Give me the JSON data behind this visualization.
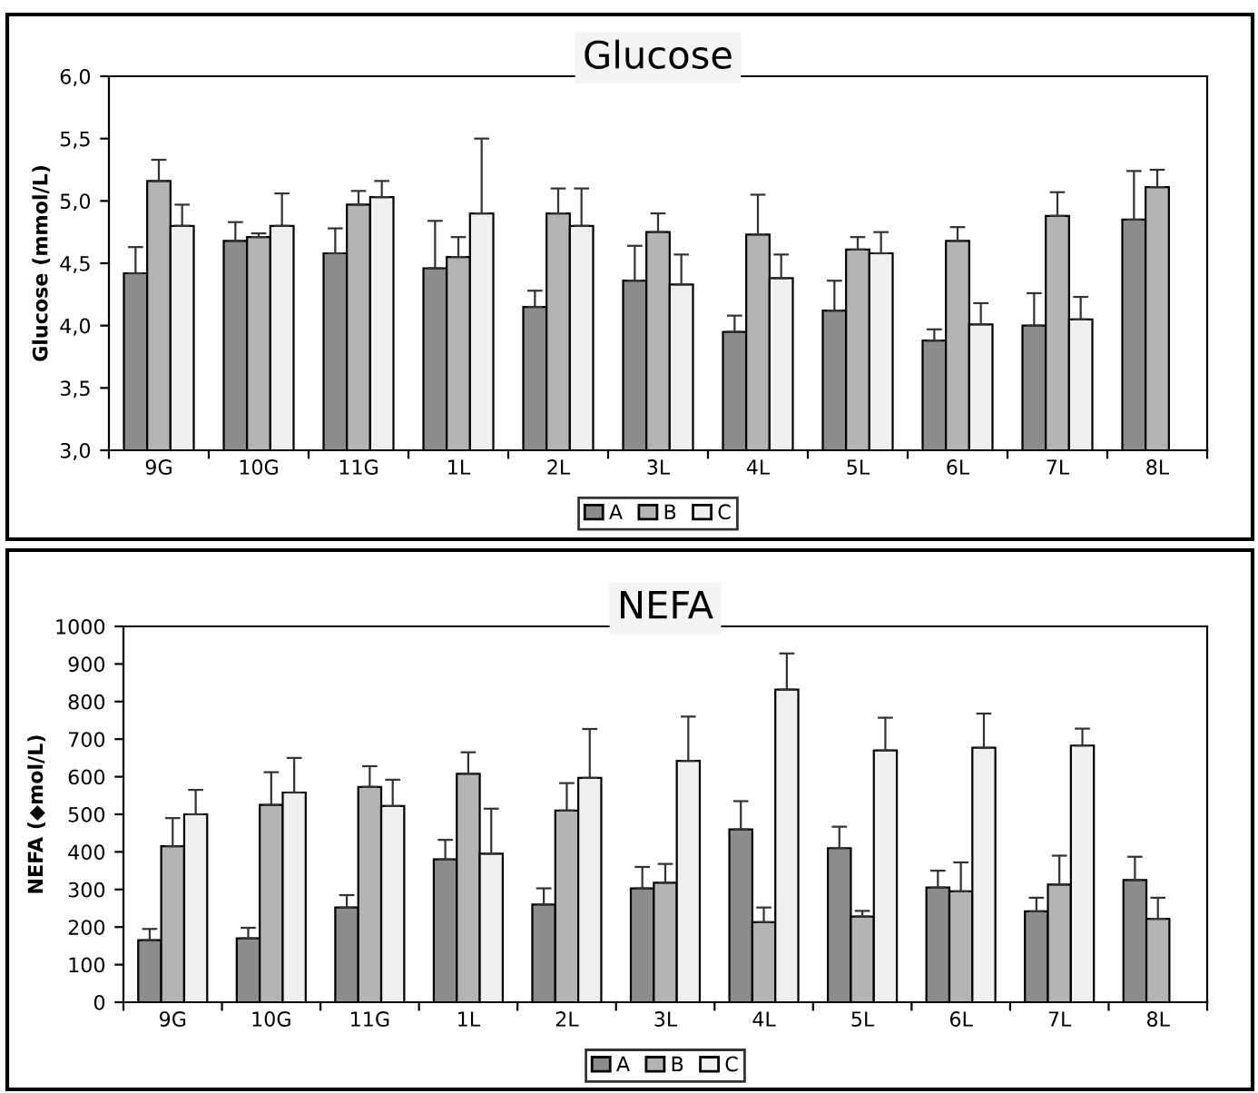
{
  "chart_data": [
    {
      "type": "bar",
      "title": "Glucose",
      "ylabel": "Glucose (mmol/L)",
      "categories": [
        "9G",
        "10G",
        "11G",
        "1L",
        "2L",
        "3L",
        "4L",
        "5L",
        "6L",
        "7L",
        "8L"
      ],
      "ylim": [
        3.0,
        6.0
      ],
      "yticks": [
        {
          "value": 3.0,
          "label": "3,0"
        },
        {
          "value": 3.5,
          "label": "3,5"
        },
        {
          "value": 4.0,
          "label": "4,0"
        },
        {
          "value": 4.5,
          "label": "4,5"
        },
        {
          "value": 5.0,
          "label": "5,0"
        },
        {
          "value": 5.5,
          "label": "5,5"
        },
        {
          "value": 6.0,
          "label": "6,0"
        }
      ],
      "grid": false,
      "legend": "bottom",
      "series": [
        {
          "name": "A",
          "color": "#8c8c8c",
          "values": [
            4.42,
            4.68,
            4.58,
            4.46,
            4.15,
            4.36,
            3.95,
            4.12,
            3.88,
            4.0,
            4.85
          ],
          "errors": [
            [
              4.42,
              4.63
            ],
            [
              4.68,
              4.83
            ],
            [
              4.58,
              4.78
            ],
            [
              4.46,
              4.84
            ],
            [
              4.15,
              4.28
            ],
            [
              4.36,
              4.64
            ],
            [
              3.95,
              4.08
            ],
            [
              4.12,
              4.36
            ],
            [
              3.88,
              3.97
            ],
            [
              4.0,
              4.26
            ],
            [
              4.85,
              5.24
            ]
          ]
        },
        {
          "name": "B",
          "color": "#b4b4b4",
          "values": [
            5.16,
            4.71,
            4.97,
            4.55,
            4.9,
            4.75,
            4.73,
            4.61,
            4.68,
            4.88,
            5.11
          ],
          "errors": [
            [
              5.16,
              5.33
            ],
            [
              4.71,
              4.74
            ],
            [
              4.97,
              5.08
            ],
            [
              4.55,
              4.71
            ],
            [
              4.9,
              5.1
            ],
            [
              4.75,
              4.9
            ],
            [
              4.73,
              5.05
            ],
            [
              4.61,
              4.71
            ],
            [
              4.68,
              4.79
            ],
            [
              4.88,
              5.07
            ],
            [
              5.11,
              5.25
            ]
          ]
        },
        {
          "name": "C",
          "color": "#f0f0f0",
          "values": [
            4.8,
            4.8,
            5.03,
            4.9,
            4.8,
            4.33,
            4.38,
            4.58,
            4.01,
            4.05,
            null
          ],
          "errors": [
            [
              4.8,
              4.97
            ],
            [
              4.8,
              5.06
            ],
            [
              5.03,
              5.16
            ],
            [
              4.9,
              5.5
            ],
            [
              4.8,
              5.1
            ],
            [
              4.33,
              4.57
            ],
            [
              4.38,
              4.57
            ],
            [
              4.58,
              4.75
            ],
            [
              4.01,
              4.18
            ],
            [
              4.05,
              4.23
            ],
            null
          ]
        }
      ]
    },
    {
      "type": "bar",
      "title": "NEFA",
      "ylabel": "NEFA (◆mol/L)",
      "categories": [
        "9G",
        "10G",
        "11G",
        "1L",
        "2L",
        "3L",
        "4L",
        "5L",
        "6L",
        "7L",
        "8L"
      ],
      "ylim": [
        0,
        1000
      ],
      "yticks": [
        0,
        100,
        200,
        300,
        400,
        500,
        600,
        700,
        800,
        900,
        1000
      ],
      "grid": false,
      "legend": "bottom",
      "series": [
        {
          "name": "A",
          "color": "#8c8c8c",
          "values": [
            165,
            170,
            252,
            380,
            260,
            303,
            460,
            410,
            305,
            242,
            325
          ],
          "errors": [
            [
              165,
              195
            ],
            [
              170,
              198
            ],
            [
              252,
              285
            ],
            [
              380,
              432
            ],
            [
              260,
              303
            ],
            [
              303,
              360
            ],
            [
              460,
              535
            ],
            [
              410,
              467
            ],
            [
              305,
              350
            ],
            [
              242,
              278
            ],
            [
              325,
              387
            ]
          ]
        },
        {
          "name": "B",
          "color": "#b4b4b4",
          "values": [
            415,
            525,
            573,
            608,
            510,
            318,
            213,
            228,
            295,
            313,
            222
          ],
          "errors": [
            [
              415,
              490
            ],
            [
              525,
              612
            ],
            [
              573,
              628
            ],
            [
              608,
              665
            ],
            [
              510,
              583
            ],
            [
              318,
              368
            ],
            [
              213,
              252
            ],
            [
              228,
              243
            ],
            [
              295,
              372
            ],
            [
              313,
              390
            ],
            [
              222,
              278
            ]
          ]
        },
        {
          "name": "C",
          "color": "#f0f0f0",
          "values": [
            500,
            558,
            522,
            395,
            597,
            642,
            832,
            670,
            677,
            683,
            null
          ],
          "errors": [
            [
              500,
              565
            ],
            [
              558,
              650
            ],
            [
              522,
              592
            ],
            [
              395,
              515
            ],
            [
              597,
              727
            ],
            [
              642,
              760
            ],
            [
              832,
              928
            ],
            [
              670,
              757
            ],
            [
              677,
              768
            ],
            [
              683,
              728
            ],
            null
          ]
        }
      ]
    }
  ]
}
